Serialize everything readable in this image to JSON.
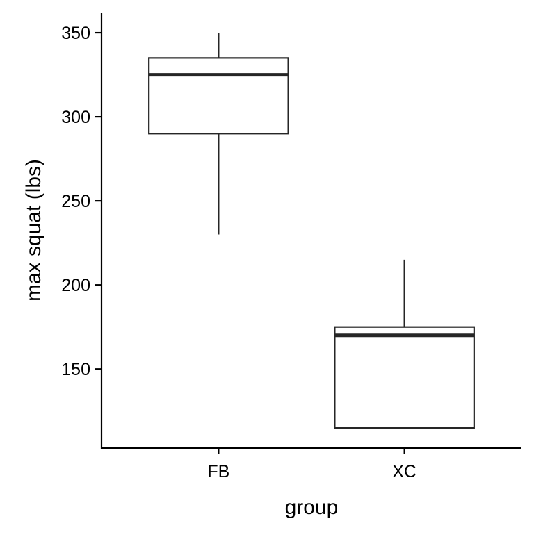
{
  "chart_data": {
    "type": "box",
    "xlabel": "group",
    "ylabel": "max squat (lbs)",
    "categories": [
      "FB",
      "XC"
    ],
    "boxes": [
      {
        "category": "FB",
        "whisker_low": 230,
        "q1": 290,
        "median": 325,
        "q3": 335,
        "whisker_high": 350
      },
      {
        "category": "XC",
        "whisker_low": 115,
        "q1": 115,
        "median": 170,
        "q3": 175,
        "whisker_high": 215
      }
    ],
    "yticks": [
      150,
      200,
      250,
      300,
      350
    ],
    "ylim": [
      103,
      362
    ],
    "grid": false,
    "legend": "none",
    "colors": {
      "box_fill": "#ffffff",
      "box_stroke": "#262626",
      "axis": "#000000"
    }
  }
}
